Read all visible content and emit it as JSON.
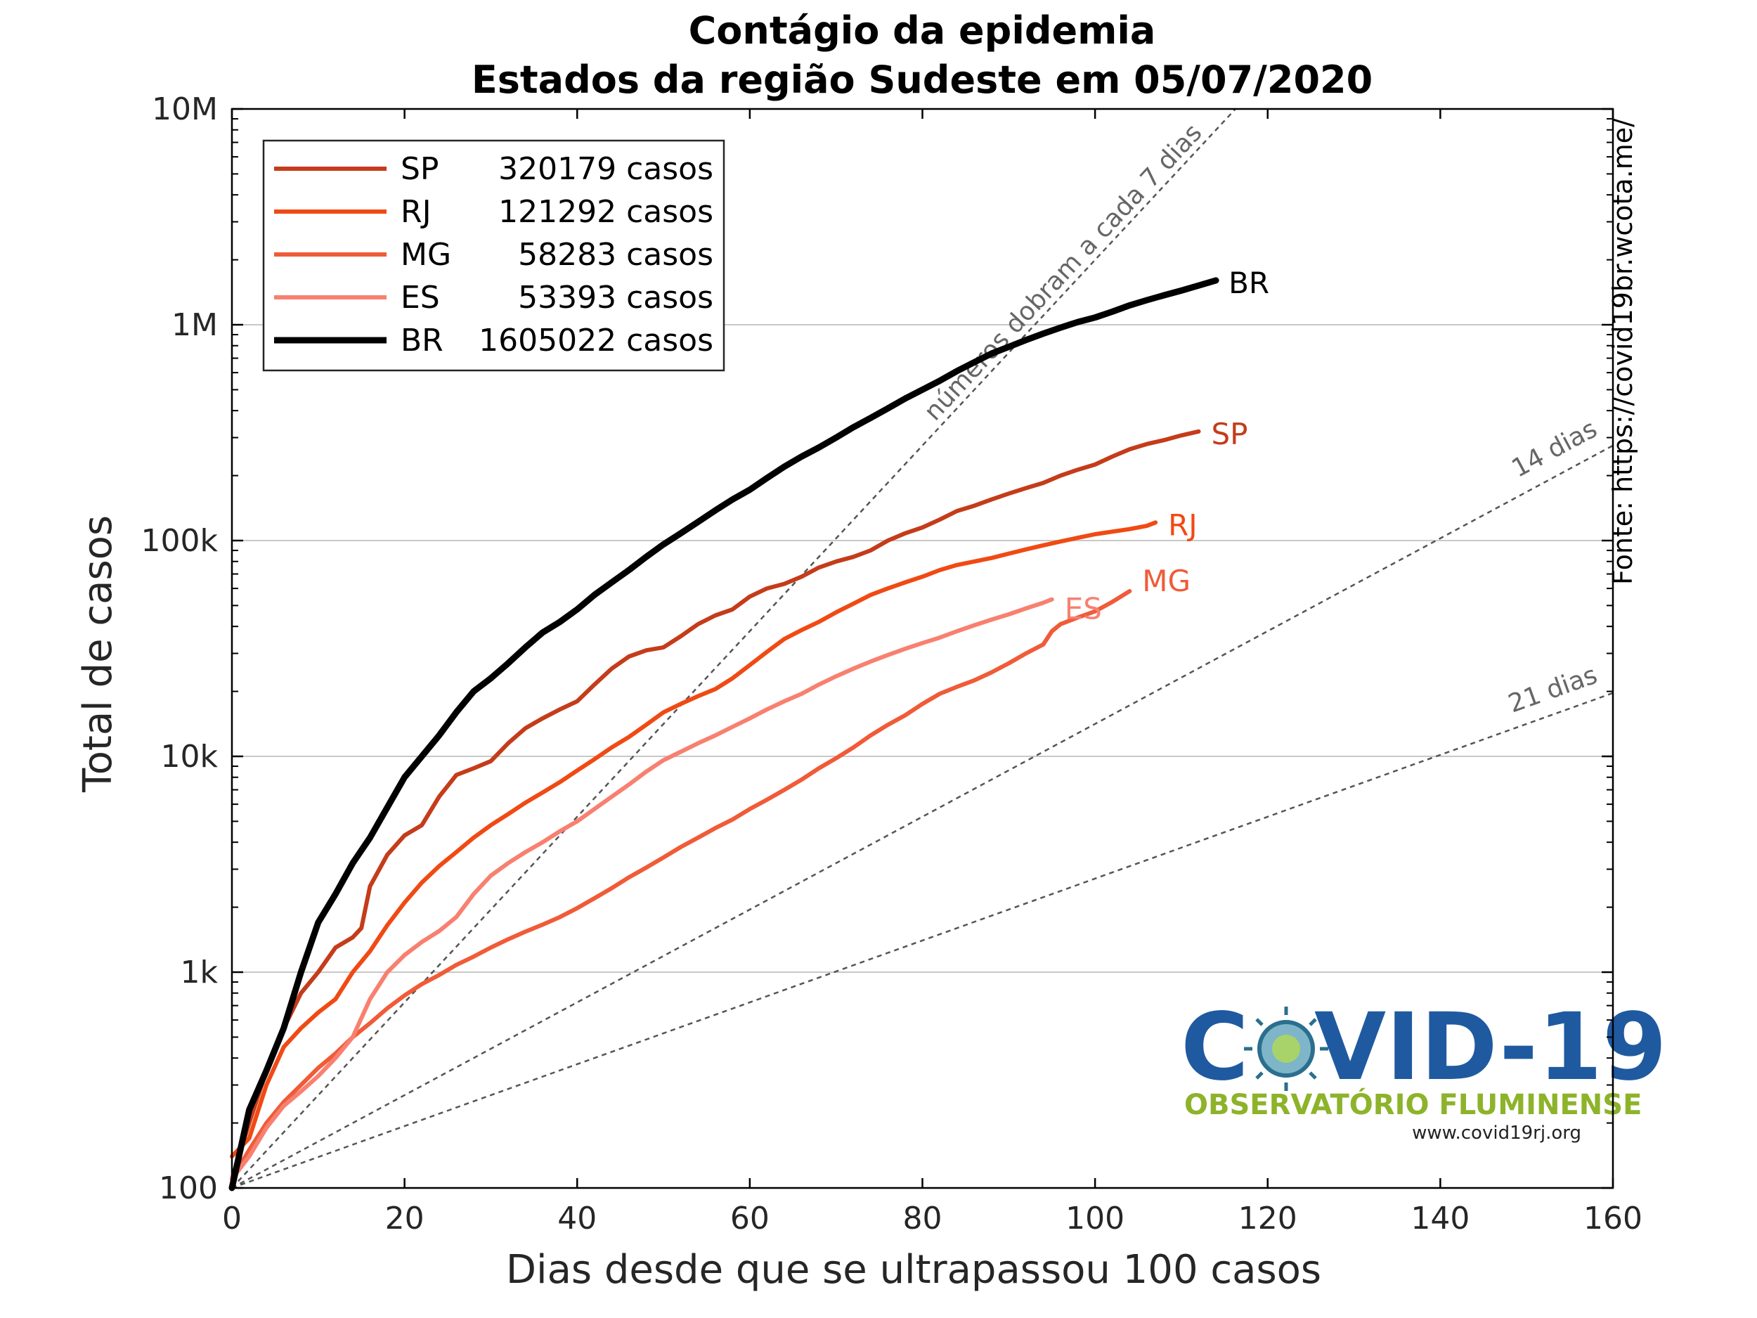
{
  "chart_data": {
    "type": "line",
    "title": "Contágio da epidemia",
    "subtitle": "Estados da região Sudeste em 05/07/2020",
    "xlabel": "Dias desde que se ultrapassou 100 casos",
    "ylabel": "Total de casos",
    "xlim": [
      0,
      160
    ],
    "ylim": [
      100,
      10000000
    ],
    "yscale": "log",
    "grid": "horizontal",
    "legend_position": "top-left",
    "x_ticks": [
      0,
      20,
      40,
      60,
      80,
      100,
      120,
      140,
      160
    ],
    "x_tick_labels": [
      "0",
      "20",
      "40",
      "60",
      "80",
      "100",
      "120",
      "140",
      "160"
    ],
    "y_ticks": [
      100,
      1000,
      10000,
      100000,
      1000000,
      10000000
    ],
    "y_tick_labels": [
      "100",
      "1k",
      "10k",
      "100k",
      "1M",
      "10M"
    ],
    "series": [
      {
        "name": "SP",
        "legend_label": "SP",
        "legend_count": "320179 casos",
        "end_label": "SP",
        "color": "#c43c1a",
        "width": 6,
        "points": [
          [
            0,
            110
          ],
          [
            2,
            200
          ],
          [
            4,
            350
          ],
          [
            6,
            550
          ],
          [
            8,
            800
          ],
          [
            10,
            1000
          ],
          [
            12,
            1300
          ],
          [
            14,
            1450
          ],
          [
            15,
            1600
          ],
          [
            16,
            2500
          ],
          [
            18,
            3500
          ],
          [
            20,
            4300
          ],
          [
            22,
            4800
          ],
          [
            24,
            6500
          ],
          [
            26,
            8200
          ],
          [
            28,
            8800
          ],
          [
            30,
            9500
          ],
          [
            32,
            11500
          ],
          [
            34,
            13500
          ],
          [
            36,
            15000
          ],
          [
            38,
            16500
          ],
          [
            40,
            18000
          ],
          [
            42,
            21500
          ],
          [
            44,
            25500
          ],
          [
            46,
            29000
          ],
          [
            48,
            31000
          ],
          [
            50,
            32000
          ],
          [
            52,
            36000
          ],
          [
            54,
            41000
          ],
          [
            56,
            45000
          ],
          [
            58,
            48000
          ],
          [
            60,
            55000
          ],
          [
            62,
            60000
          ],
          [
            64,
            63000
          ],
          [
            66,
            68000
          ],
          [
            68,
            75000
          ],
          [
            70,
            80000
          ],
          [
            72,
            84000
          ],
          [
            74,
            90000
          ],
          [
            76,
            100000
          ],
          [
            78,
            108000
          ],
          [
            80,
            115000
          ],
          [
            82,
            125000
          ],
          [
            84,
            137000
          ],
          [
            86,
            145000
          ],
          [
            88,
            155000
          ],
          [
            90,
            165000
          ],
          [
            92,
            175000
          ],
          [
            94,
            185000
          ],
          [
            96,
            200000
          ],
          [
            98,
            213000
          ],
          [
            100,
            225000
          ],
          [
            102,
            245000
          ],
          [
            104,
            265000
          ],
          [
            106,
            280000
          ],
          [
            108,
            292000
          ],
          [
            110,
            307000
          ],
          [
            112,
            320179
          ]
        ]
      },
      {
        "name": "RJ",
        "legend_label": "RJ",
        "legend_count": "121292 casos",
        "end_label": "RJ",
        "color": "#f04a14",
        "width": 6,
        "points": [
          [
            0,
            140
          ],
          [
            2,
            170
          ],
          [
            4,
            300
          ],
          [
            6,
            450
          ],
          [
            8,
            550
          ],
          [
            10,
            650
          ],
          [
            12,
            750
          ],
          [
            14,
            1000
          ],
          [
            16,
            1250
          ],
          [
            18,
            1650
          ],
          [
            20,
            2100
          ],
          [
            22,
            2600
          ],
          [
            24,
            3100
          ],
          [
            26,
            3600
          ],
          [
            28,
            4200
          ],
          [
            30,
            4800
          ],
          [
            32,
            5400
          ],
          [
            34,
            6100
          ],
          [
            36,
            6800
          ],
          [
            38,
            7600
          ],
          [
            40,
            8600
          ],
          [
            42,
            9700
          ],
          [
            44,
            11000
          ],
          [
            46,
            12300
          ],
          [
            48,
            14000
          ],
          [
            50,
            16000
          ],
          [
            52,
            17500
          ],
          [
            54,
            19000
          ],
          [
            56,
            20500
          ],
          [
            58,
            23000
          ],
          [
            60,
            26500
          ],
          [
            62,
            30500
          ],
          [
            64,
            35000
          ],
          [
            66,
            38500
          ],
          [
            68,
            42000
          ],
          [
            70,
            46500
          ],
          [
            72,
            51000
          ],
          [
            74,
            56000
          ],
          [
            76,
            60000
          ],
          [
            78,
            64000
          ],
          [
            80,
            68000
          ],
          [
            82,
            73000
          ],
          [
            84,
            77000
          ],
          [
            86,
            80000
          ],
          [
            88,
            83000
          ],
          [
            90,
            87000
          ],
          [
            92,
            91000
          ],
          [
            94,
            95000
          ],
          [
            96,
            99000
          ],
          [
            98,
            103000
          ],
          [
            100,
            107000
          ],
          [
            102,
            110000
          ],
          [
            104,
            113000
          ],
          [
            106,
            117000
          ],
          [
            107,
            121292
          ]
        ]
      },
      {
        "name": "MG",
        "legend_label": "MG",
        "legend_count": "58283 casos",
        "end_label": "MG",
        "color": "#f05b38",
        "width": 6,
        "points": [
          [
            0,
            110
          ],
          [
            2,
            150
          ],
          [
            4,
            200
          ],
          [
            6,
            250
          ],
          [
            8,
            300
          ],
          [
            10,
            360
          ],
          [
            12,
            420
          ],
          [
            14,
            500
          ],
          [
            16,
            580
          ],
          [
            18,
            680
          ],
          [
            20,
            780
          ],
          [
            22,
            880
          ],
          [
            24,
            970
          ],
          [
            26,
            1080
          ],
          [
            28,
            1180
          ],
          [
            30,
            1300
          ],
          [
            32,
            1420
          ],
          [
            34,
            1540
          ],
          [
            36,
            1660
          ],
          [
            38,
            1800
          ],
          [
            40,
            1980
          ],
          [
            42,
            2200
          ],
          [
            44,
            2450
          ],
          [
            46,
            2750
          ],
          [
            48,
            3050
          ],
          [
            50,
            3400
          ],
          [
            52,
            3800
          ],
          [
            54,
            4200
          ],
          [
            56,
            4650
          ],
          [
            58,
            5100
          ],
          [
            60,
            5700
          ],
          [
            62,
            6300
          ],
          [
            64,
            7000
          ],
          [
            66,
            7800
          ],
          [
            68,
            8800
          ],
          [
            70,
            9800
          ],
          [
            72,
            11000
          ],
          [
            74,
            12500
          ],
          [
            76,
            14000
          ],
          [
            78,
            15500
          ],
          [
            80,
            17500
          ],
          [
            82,
            19500
          ],
          [
            84,
            21000
          ],
          [
            86,
            22500
          ],
          [
            88,
            24500
          ],
          [
            90,
            27000
          ],
          [
            92,
            30000
          ],
          [
            94,
            33000
          ],
          [
            95,
            38000
          ],
          [
            96,
            41000
          ],
          [
            98,
            44000
          ],
          [
            100,
            47000
          ],
          [
            102,
            52000
          ],
          [
            104,
            58283
          ]
        ]
      },
      {
        "name": "ES",
        "legend_label": "ES",
        "legend_count": "53393 casos",
        "end_label": "ES",
        "color": "#f88070",
        "width": 6,
        "points": [
          [
            0,
            110
          ],
          [
            2,
            140
          ],
          [
            4,
            190
          ],
          [
            6,
            240
          ],
          [
            8,
            280
          ],
          [
            10,
            330
          ],
          [
            12,
            400
          ],
          [
            14,
            500
          ],
          [
            16,
            750
          ],
          [
            18,
            1000
          ],
          [
            20,
            1200
          ],
          [
            22,
            1380
          ],
          [
            24,
            1550
          ],
          [
            26,
            1800
          ],
          [
            28,
            2300
          ],
          [
            30,
            2800
          ],
          [
            32,
            3200
          ],
          [
            34,
            3600
          ],
          [
            36,
            4000
          ],
          [
            38,
            4500
          ],
          [
            40,
            5000
          ],
          [
            42,
            5700
          ],
          [
            44,
            6500
          ],
          [
            46,
            7400
          ],
          [
            48,
            8500
          ],
          [
            50,
            9600
          ],
          [
            52,
            10500
          ],
          [
            54,
            11500
          ],
          [
            56,
            12500
          ],
          [
            58,
            13700
          ],
          [
            60,
            15000
          ],
          [
            62,
            16500
          ],
          [
            64,
            18000
          ],
          [
            66,
            19500
          ],
          [
            68,
            21500
          ],
          [
            70,
            23500
          ],
          [
            72,
            25500
          ],
          [
            74,
            27500
          ],
          [
            76,
            29500
          ],
          [
            78,
            31500
          ],
          [
            80,
            33500
          ],
          [
            82,
            35500
          ],
          [
            84,
            38000
          ],
          [
            86,
            40500
          ],
          [
            88,
            43000
          ],
          [
            90,
            45500
          ],
          [
            92,
            48500
          ],
          [
            94,
            51500
          ],
          [
            95,
            53393
          ]
        ]
      },
      {
        "name": "BR",
        "legend_label": "BR",
        "legend_count": "1605022 casos",
        "end_label": "BR",
        "color": "#000000",
        "width": 9,
        "points": [
          [
            0,
            100
          ],
          [
            2,
            230
          ],
          [
            4,
            350
          ],
          [
            6,
            550
          ],
          [
            8,
            1000
          ],
          [
            10,
            1700
          ],
          [
            12,
            2300
          ],
          [
            14,
            3200
          ],
          [
            16,
            4200
          ],
          [
            18,
            5800
          ],
          [
            20,
            8000
          ],
          [
            22,
            10000
          ],
          [
            24,
            12500
          ],
          [
            26,
            16000
          ],
          [
            28,
            20000
          ],
          [
            30,
            23000
          ],
          [
            32,
            27000
          ],
          [
            34,
            32000
          ],
          [
            36,
            37500
          ],
          [
            38,
            42000
          ],
          [
            40,
            48000
          ],
          [
            42,
            56000
          ],
          [
            44,
            64000
          ],
          [
            46,
            73000
          ],
          [
            48,
            84000
          ],
          [
            50,
            96000
          ],
          [
            52,
            108000
          ],
          [
            54,
            122000
          ],
          [
            56,
            138000
          ],
          [
            58,
            155000
          ],
          [
            60,
            172000
          ],
          [
            62,
            195000
          ],
          [
            64,
            220000
          ],
          [
            66,
            245000
          ],
          [
            68,
            270000
          ],
          [
            70,
            300000
          ],
          [
            72,
            335000
          ],
          [
            74,
            370000
          ],
          [
            76,
            410000
          ],
          [
            78,
            455000
          ],
          [
            80,
            500000
          ],
          [
            82,
            550000
          ],
          [
            84,
            610000
          ],
          [
            86,
            670000
          ],
          [
            88,
            735000
          ],
          [
            90,
            790000
          ],
          [
            92,
            850000
          ],
          [
            94,
            910000
          ],
          [
            96,
            970000
          ],
          [
            98,
            1030000
          ],
          [
            100,
            1080000
          ],
          [
            102,
            1150000
          ],
          [
            104,
            1230000
          ],
          [
            106,
            1300000
          ],
          [
            108,
            1370000
          ],
          [
            110,
            1440000
          ],
          [
            112,
            1520000
          ],
          [
            114,
            1605022
          ]
        ]
      }
    ],
    "reference_lines": [
      {
        "label": "números dobram a cada 7 dias",
        "doubling_days": 7
      },
      {
        "label": "14 dias",
        "doubling_days": 14
      },
      {
        "label": "21 dias",
        "doubling_days": 21
      }
    ],
    "source_text": "Fonte: https://covid19br.wcota.me/"
  },
  "logo": {
    "text_c": "C",
    "text_rest": "VID-19",
    "subtitle": "OBSERVATÓRIO FLUMINENSE",
    "url": "www.covid19rj.org"
  }
}
